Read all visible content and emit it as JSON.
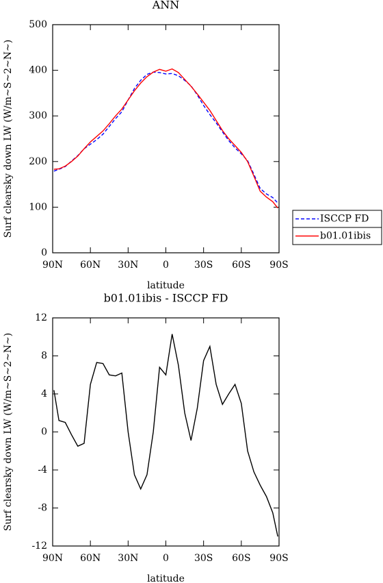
{
  "chart_data": [
    {
      "type": "line",
      "title": "ANN",
      "xlabel": "latitude",
      "ylabel": "Surf clearsky down LW (W/m~S~2~N~)",
      "x": [
        89,
        85,
        80,
        75,
        70,
        65,
        60,
        55,
        50,
        45,
        40,
        35,
        30,
        25,
        20,
        15,
        10,
        5,
        0,
        -5,
        -10,
        -15,
        -20,
        -25,
        -30,
        -35,
        -40,
        -45,
        -50,
        -55,
        -60,
        -65,
        -70,
        -75,
        -80,
        -85,
        -89
      ],
      "series": [
        {
          "name": "ISCCP FD",
          "color": "#0000ff",
          "dash": true,
          "values": [
            179,
            183,
            189,
            201,
            213,
            228,
            238,
            248,
            260,
            277,
            294,
            309,
            335,
            360,
            378,
            391,
            396,
            395,
            392,
            393,
            388,
            378,
            366,
            346,
            323,
            303,
            285,
            265,
            246,
            230,
            217,
            202,
            172,
            141,
            129,
            121,
            109
          ]
        },
        {
          "name": "b01.01ibis",
          "color": "#ff0000",
          "dash": false,
          "values": [
            183,
            184,
            190,
            200,
            212,
            228,
            243,
            255,
            267,
            283,
            300,
            315,
            335,
            355,
            372,
            386,
            396,
            402,
            398,
            403,
            395,
            380,
            365,
            348,
            330,
            312,
            290,
            268,
            250,
            235,
            220,
            200,
            168,
            135,
            122,
            112,
            98
          ]
        }
      ],
      "xlim": [
        90,
        -90
      ],
      "xticks": [
        {
          "value": 90,
          "label": "90N"
        },
        {
          "value": 60,
          "label": "60N"
        },
        {
          "value": 30,
          "label": "30N"
        },
        0,
        {
          "value": -30,
          "label": "30S"
        },
        {
          "value": -60,
          "label": "60S"
        },
        {
          "value": -90,
          "label": "90S"
        }
      ],
      "ylim": [
        0,
        500
      ],
      "yticks": [
        0,
        100,
        200,
        300,
        400,
        500
      ],
      "legend": "right"
    },
    {
      "type": "line",
      "title": "b01.01ibis - ISCCP FD",
      "xlabel": "latitude",
      "ylabel": "Surf clearsky down LW (W/m~S~2~N~)",
      "x": [
        89,
        85,
        80,
        75,
        70,
        65,
        60,
        55,
        50,
        45,
        40,
        35,
        30,
        25,
        20,
        15,
        10,
        5,
        0,
        -5,
        -10,
        -15,
        -20,
        -25,
        -30,
        -35,
        -40,
        -45,
        -50,
        -55,
        -60,
        -65,
        -70,
        -75,
        -80,
        -85,
        -89
      ],
      "color": "#000000",
      "values": [
        4.4,
        1.2,
        1,
        -0.3,
        -1.5,
        -1.2,
        5,
        7.3,
        7.2,
        6,
        5.9,
        6.2,
        0,
        -4.5,
        -6,
        -4.5,
        0,
        6.8,
        6,
        10.3,
        7,
        2,
        -0.9,
        2.5,
        7.5,
        9,
        5,
        2.9,
        4,
        5,
        3,
        -2,
        -4.2,
        -5.6,
        -6.8,
        -8.5,
        -11
      ],
      "xlim": [
        90,
        -90
      ],
      "xticks": [
        {
          "value": 90,
          "label": "90N"
        },
        {
          "value": 60,
          "label": "60N"
        },
        {
          "value": 30,
          "label": "30N"
        },
        0,
        {
          "value": -30,
          "label": "30S"
        },
        {
          "value": -60,
          "label": "60S"
        },
        {
          "value": -90,
          "label": "90S"
        }
      ],
      "ylim": [
        -12,
        12
      ],
      "yticks": [
        -12,
        -8,
        -4,
        0,
        4,
        8,
        12
      ]
    }
  ]
}
